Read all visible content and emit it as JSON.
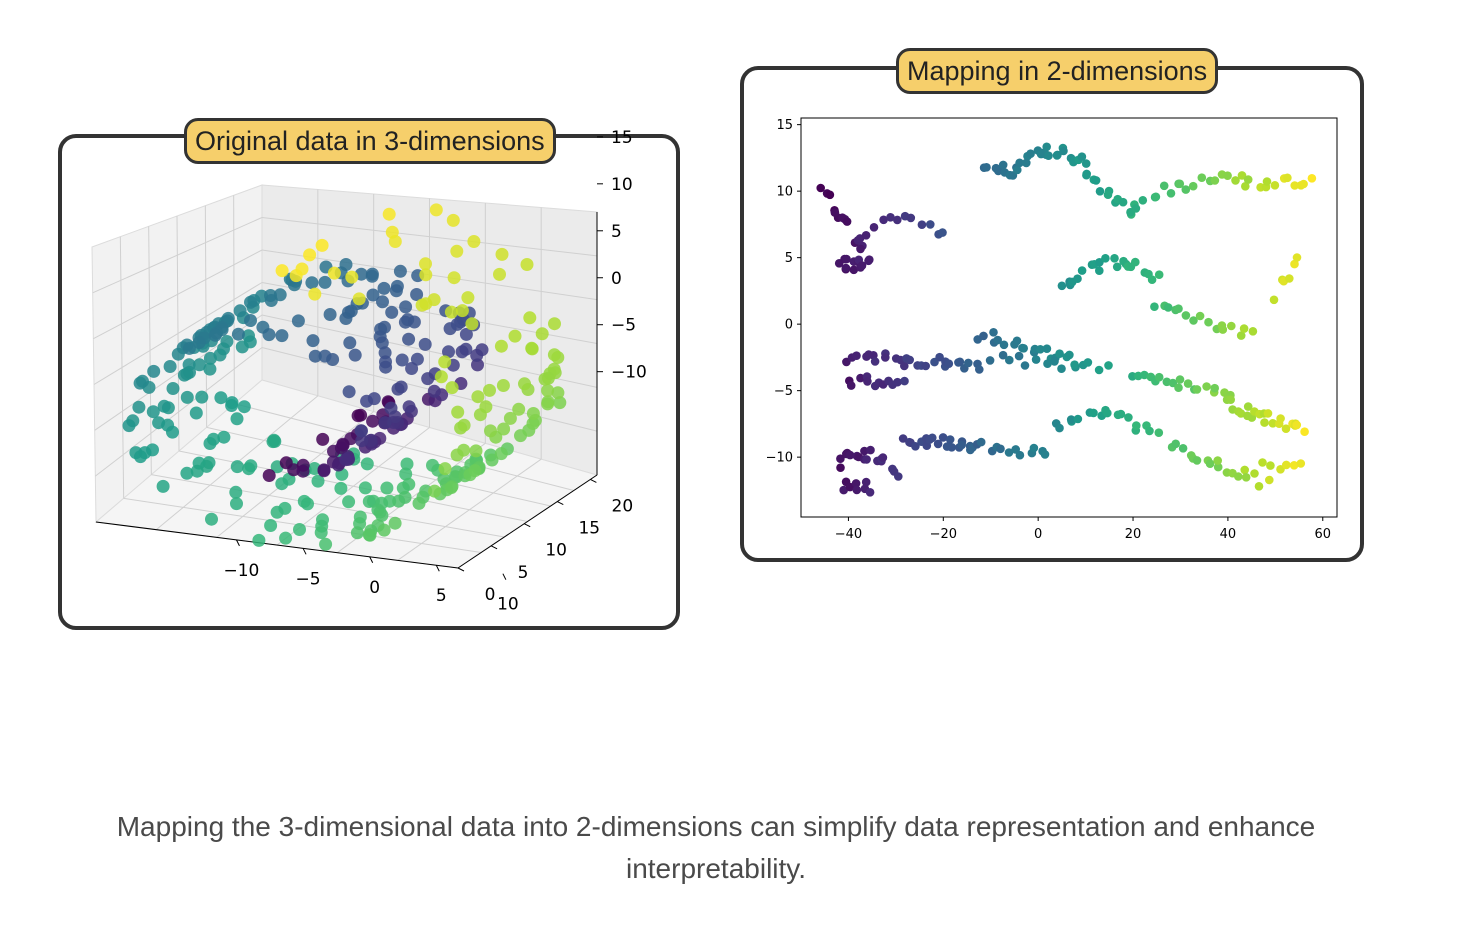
{
  "panels": {
    "left_title": "Original data in 3-dimensions",
    "right_title": "Mapping in 2-dimensions"
  },
  "caption": "Mapping the 3-dimensional data into 2-dimensions can simplify data representation and enhance interpretability.",
  "colors": {
    "panel_border": "#333333",
    "title_fill": "#f6cf6b",
    "colormap": "viridis",
    "colormap_stops": [
      "#440154",
      "#3b528b",
      "#21918c",
      "#5ec962",
      "#fde725"
    ]
  },
  "chart_data": [
    {
      "type": "scatter",
      "projection": "3d",
      "description_of_data": "3D swiss roll point cloud, color by position along roll",
      "x_ticks": [
        "−10",
        "−5",
        "0",
        "5",
        "10"
      ],
      "y_ticks": [
        "0",
        "5",
        "10",
        "15",
        "20"
      ],
      "z_ticks": [
        "−10",
        "−5",
        "0",
        "5",
        "10",
        "15"
      ],
      "xlim": [
        -11,
        14
      ],
      "ylim": [
        0,
        21
      ],
      "zlim": [
        -12,
        16
      ],
      "grid": true
    },
    {
      "type": "scatter",
      "x_ticks": [
        "−40",
        "−20",
        "0",
        "20",
        "40",
        "60"
      ],
      "y_ticks": [
        "−10",
        "−5",
        "0",
        "5",
        "10",
        "15"
      ],
      "xlim": [
        -50,
        63
      ],
      "ylim": [
        -14.5,
        15.5
      ],
      "grid": false
    }
  ]
}
